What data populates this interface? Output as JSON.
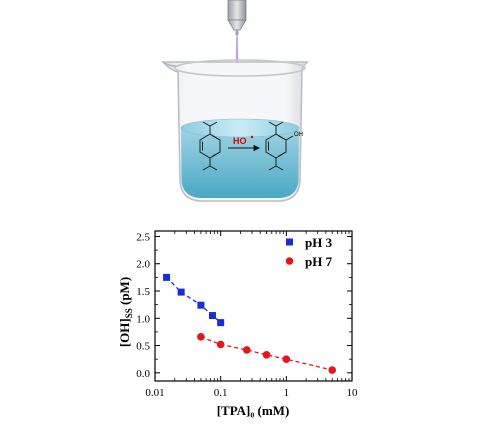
{
  "illustration": {
    "radical_label": "HO",
    "group_labels": [
      "O",
      "OH"
    ]
  },
  "chart_data": {
    "type": "scatter",
    "xscale": "log",
    "xlim": [
      0.01,
      10
    ],
    "ylim": [
      -0.15,
      2.6
    ],
    "xlabel": "[TPA]₀ (mM)",
    "ylabel": "[OH]SS (pM)",
    "x_tick_labels": [
      "0.01",
      "0.1",
      "1",
      "10"
    ],
    "x_ticks": [
      0.01,
      0.1,
      1,
      10
    ],
    "y_tick_labels": [
      "0.0",
      "0.5",
      "1.0",
      "1.5",
      "2.0",
      "2.5"
    ],
    "y_ticks": [
      0.0,
      0.5,
      1.0,
      1.5,
      2.0,
      2.5
    ],
    "legend_position": "top-right",
    "series": [
      {
        "name": "pH 3",
        "marker": "square",
        "color": "#1a2bd9",
        "x": [
          0.015,
          0.025,
          0.05,
          0.075,
          0.1
        ],
        "y": [
          1.75,
          1.48,
          1.24,
          1.05,
          0.92
        ]
      },
      {
        "name": "pH 7",
        "marker": "circle",
        "color": "#e8141c",
        "x": [
          0.05,
          0.1,
          0.25,
          0.5,
          1.0,
          5.0
        ],
        "y": [
          0.66,
          0.52,
          0.42,
          0.33,
          0.25,
          0.05
        ]
      }
    ]
  }
}
